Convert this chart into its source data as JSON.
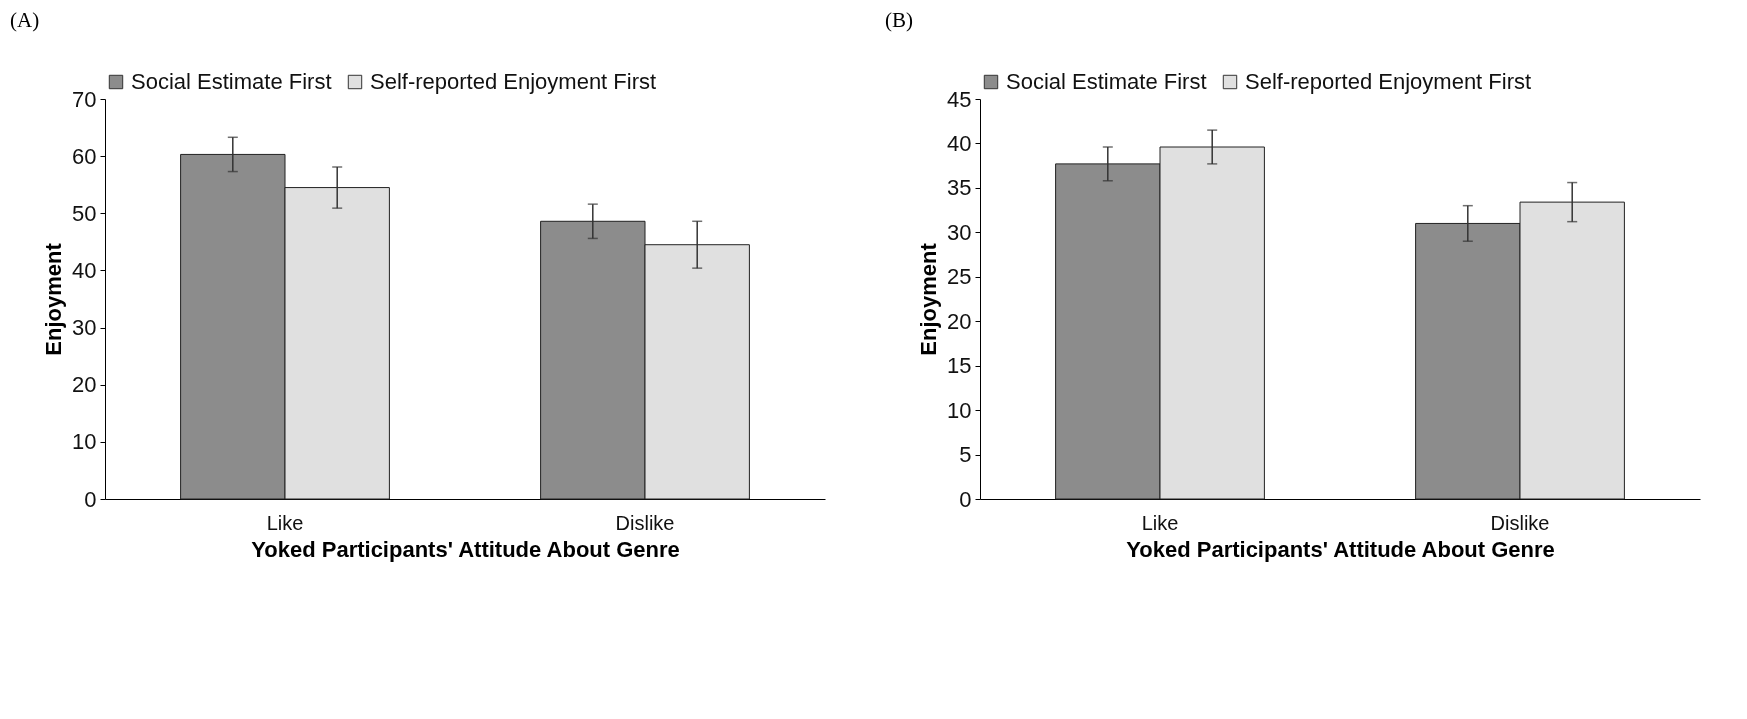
{
  "chart_data": [
    {
      "type": "bar",
      "title": "(A)",
      "xlabel": "Yoked Participants' Attitude About Genre",
      "ylabel": "Enjoyment",
      "categories": [
        "Like",
        "Dislike"
      ],
      "series": [
        {
          "name": "Social Estimate First",
          "color": "#8c8c8c",
          "values": [
            60.3,
            48.6
          ],
          "errors": [
            3,
            3
          ]
        },
        {
          "name": "Self-reported Enjoyment First",
          "color": "#e0e0e0",
          "values": [
            54.5,
            44.5
          ],
          "errors": [
            3.6,
            4.1
          ]
        }
      ],
      "ylim": [
        0,
        70
      ],
      "yticks": [
        0,
        10,
        20,
        30,
        40,
        50,
        60,
        70
      ],
      "grid": false,
      "legend": "top left"
    },
    {
      "type": "bar",
      "title": "(B)",
      "xlabel": "Yoked Participants' Attitude About Genre",
      "ylabel": "Enjoyment",
      "categories": [
        "Like",
        "Dislike"
      ],
      "series": [
        {
          "name": "Social Estimate First",
          "color": "#8c8c8c",
          "values": [
            37.7,
            31.0
          ],
          "errors": [
            1.9,
            2
          ]
        },
        {
          "name": "Self-reported Enjoyment First",
          "color": "#e0e0e0",
          "values": [
            39.6,
            33.4
          ],
          "errors": [
            1.9,
            2.2
          ]
        }
      ],
      "ylim": [
        0,
        45
      ],
      "yticks": [
        0,
        5,
        10,
        15,
        20,
        25,
        30,
        35,
        40,
        45
      ],
      "grid": false,
      "legend": "top left"
    }
  ]
}
